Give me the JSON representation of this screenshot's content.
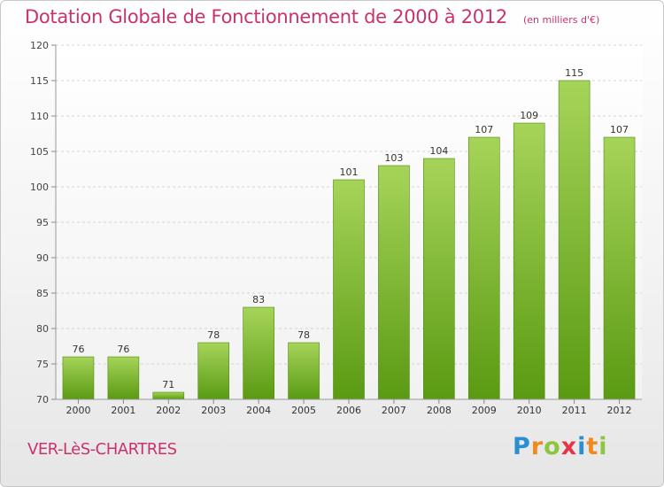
{
  "title": "Dotation Globale de Fonctionnement de 2000 à 2012",
  "subtitle": "(en milliers d'€)",
  "commune": "VER-LèS-CHARTRES",
  "logo": {
    "letters": [
      "P",
      "r",
      "o",
      "x",
      "i",
      "t",
      "i"
    ],
    "colors": [
      "#2a8fd0",
      "#f08a1c",
      "#8cc63f",
      "#e8334a",
      "#2a8fd0",
      "#f08a1c",
      "#8cc63f"
    ]
  },
  "colors": {
    "accent": "#c8336e",
    "bar_light": "#a6d45a",
    "bar_dark": "#5a9a12"
  },
  "chart_data": {
    "type": "bar",
    "categories": [
      "2000",
      "2001",
      "2002",
      "2003",
      "2004",
      "2005",
      "2006",
      "2007",
      "2008",
      "2009",
      "2010",
      "2011",
      "2012"
    ],
    "values": [
      76,
      76,
      71,
      78,
      83,
      78,
      101,
      103,
      104,
      107,
      109,
      115,
      107
    ],
    "title": "Dotation Globale de Fonctionnement de 2000 à 2012",
    "subtitle": "(en milliers d'€)",
    "ylim": [
      70,
      120
    ],
    "yticks": [
      70,
      75,
      80,
      85,
      90,
      95,
      100,
      105,
      110,
      115,
      120
    ],
    "grid": true
  }
}
